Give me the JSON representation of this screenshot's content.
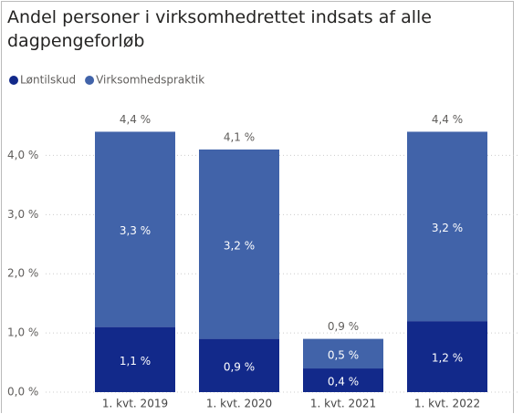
{
  "chart_data": {
    "type": "stacked_bar",
    "title": "Andel personer i virksomhedrettet indsats af alle dagpengeforløb",
    "categories": [
      "1. kvt. 2019",
      "1. kvt. 2020",
      "1. kvt. 2021",
      "1. kvt. 2022"
    ],
    "series": [
      {
        "name": "Løntilskud",
        "color": "#12298a",
        "values": [
          1.1,
          0.9,
          0.4,
          1.2
        ],
        "value_labels": [
          "1,1 %",
          "0,9 %",
          "0,4 %",
          "1,2 %"
        ]
      },
      {
        "name": "Virksomhedspraktik",
        "color": "#4163a9",
        "values": [
          3.3,
          3.2,
          0.5,
          3.2
        ],
        "value_labels": [
          "3,3 %",
          "3,2 %",
          "0,5 %",
          "3,2 %"
        ]
      }
    ],
    "totals": [
      4.4,
      4.1,
      0.9,
      4.4
    ],
    "total_labels": [
      "4,4 %",
      "4,1 %",
      "0,9 %",
      "4,4 %"
    ],
    "ylim": [
      0,
      4.7
    ],
    "yticks": [
      {
        "value": 0,
        "label": "0,0 %"
      },
      {
        "value": 1,
        "label": "1,0 %"
      },
      {
        "value": 2,
        "label": "2,0 %"
      },
      {
        "value": 3,
        "label": "3,0 %"
      },
      {
        "value": 4,
        "label": "4,0 %"
      }
    ],
    "grid": true
  }
}
